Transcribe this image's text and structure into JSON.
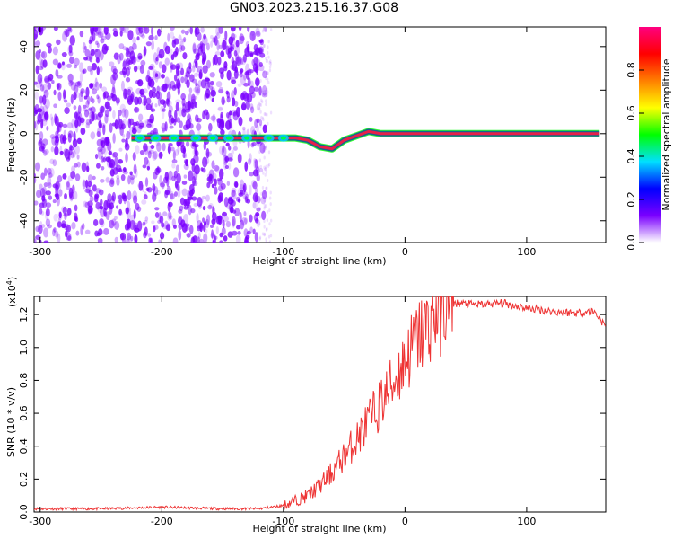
{
  "title": "GN03.2023.215.16.37.G08",
  "chart_data": [
    {
      "type": "heatmap",
      "xlabel": "Height of straight line (km)",
      "ylabel": "Frequency (Hz)",
      "xlim": [
        -305,
        165
      ],
      "ylim": [
        -50,
        49
      ],
      "xticks": [
        -300,
        -200,
        -100,
        0,
        100
      ],
      "yticks": [
        -40,
        -20,
        0,
        20,
        40
      ],
      "colorbar": {
        "label": "Normalized spectral amplitude",
        "range": [
          0,
          1
        ],
        "ticks": [
          "0.0",
          "0.2",
          "0.4",
          "0.6",
          "0.8"
        ],
        "tick_values": [
          0,
          0.2,
          0.4,
          0.6,
          0.8
        ],
        "colors": [
          "#ffffff",
          "#7a00ff",
          "#0000ff",
          "#00e0ff",
          "#00ff00",
          "#ffff00",
          "#ff7f00",
          "#ff0000",
          "#ff0080"
        ]
      },
      "signal_track": {
        "x": [
          -225,
          -200,
          -170,
          -140,
          -120,
          -100,
          -90,
          -80,
          -70,
          -60,
          -50,
          -40,
          -30,
          -20,
          -10,
          0,
          160
        ],
        "y": [
          -2,
          -2,
          -2,
          -2,
          -2,
          -2,
          -2,
          -3,
          -6,
          -7,
          -3,
          -1,
          1,
          0,
          0,
          0,
          0
        ]
      },
      "colors": {
        "noise": "#7a00ff",
        "track": "#e8204a"
      }
    },
    {
      "type": "line",
      "xlabel": "Height of straight line (km)",
      "ylabel": "SNR (10 * v/v)",
      "y_scale_label": "(x10",
      "y_scale_exp": "4",
      "y_scale_close": ")",
      "xlim": [
        -305,
        165
      ],
      "ylim": [
        0,
        1.31
      ],
      "xticks": [
        -300,
        -200,
        -100,
        0,
        100
      ],
      "yticks": [
        "0.0",
        "0.2",
        "0.4",
        "0.6",
        "0.8",
        "1.0",
        "1.2"
      ],
      "ytick_values": [
        0,
        0.2,
        0.4,
        0.6,
        0.8,
        1.0,
        1.2
      ],
      "series": [
        {
          "x": [
            -305,
            -250,
            -200,
            -150,
            -120,
            -100,
            -90,
            -80,
            -70,
            -60,
            -50,
            -40,
            -30,
            -20,
            -10,
            0,
            10,
            20,
            30,
            40,
            60,
            80,
            100,
            120,
            140,
            155,
            160,
            165
          ],
          "y": [
            0.02,
            0.02,
            0.03,
            0.02,
            0.02,
            0.04,
            0.07,
            0.1,
            0.16,
            0.24,
            0.34,
            0.44,
            0.55,
            0.66,
            0.78,
            0.92,
            1.05,
            1.15,
            1.24,
            1.27,
            1.26,
            1.27,
            1.24,
            1.22,
            1.21,
            1.22,
            1.18,
            1.12
          ],
          "color": "#ee3434"
        }
      ]
    }
  ]
}
